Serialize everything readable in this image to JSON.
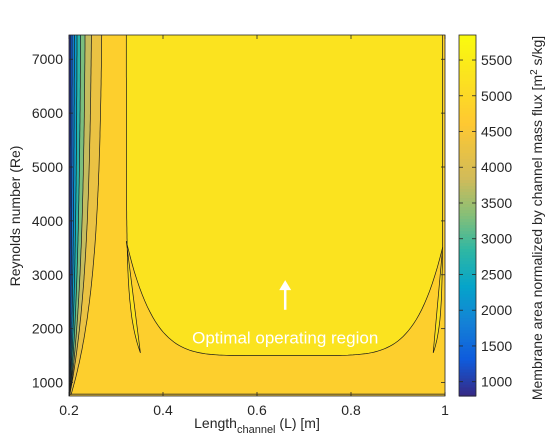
{
  "chart_data": {
    "type": "contour",
    "title": "",
    "xlabel": {
      "base": "Length",
      "sub": "channel",
      "rest": " (L) [m]"
    },
    "ylabel": "Reynolds number (Re)",
    "colorbar_label": {
      "base": "Membrane area normalized by channel mass flux [m",
      "sup": "2",
      "rest": " s/kg]"
    },
    "xlim": [
      0.2,
      1.0
    ],
    "ylim": [
      750,
      7450
    ],
    "clim": [
      800,
      5850
    ],
    "xticks": [
      "0.2",
      "0.4",
      "0.6",
      "0.8",
      "1"
    ],
    "yticks": [
      "1000",
      "2000",
      "3000",
      "4000",
      "5000",
      "6000",
      "7000"
    ],
    "cbar_ticks": [
      "1000",
      "1500",
      "2000",
      "2500",
      "3000",
      "3500",
      "4000",
      "4500",
      "5000",
      "5500"
    ],
    "contour_levels": [
      1000,
      1500,
      2000,
      2500,
      3000,
      3500,
      4000,
      4500,
      5000,
      5500
    ],
    "colormap": "parula",
    "annotation": {
      "text": "Optimal operating region",
      "arrow_x": 0.66,
      "arrow_y_from": 2350,
      "arrow_y_to": 2900,
      "text_x": 0.66,
      "text_y": 1720
    }
  }
}
